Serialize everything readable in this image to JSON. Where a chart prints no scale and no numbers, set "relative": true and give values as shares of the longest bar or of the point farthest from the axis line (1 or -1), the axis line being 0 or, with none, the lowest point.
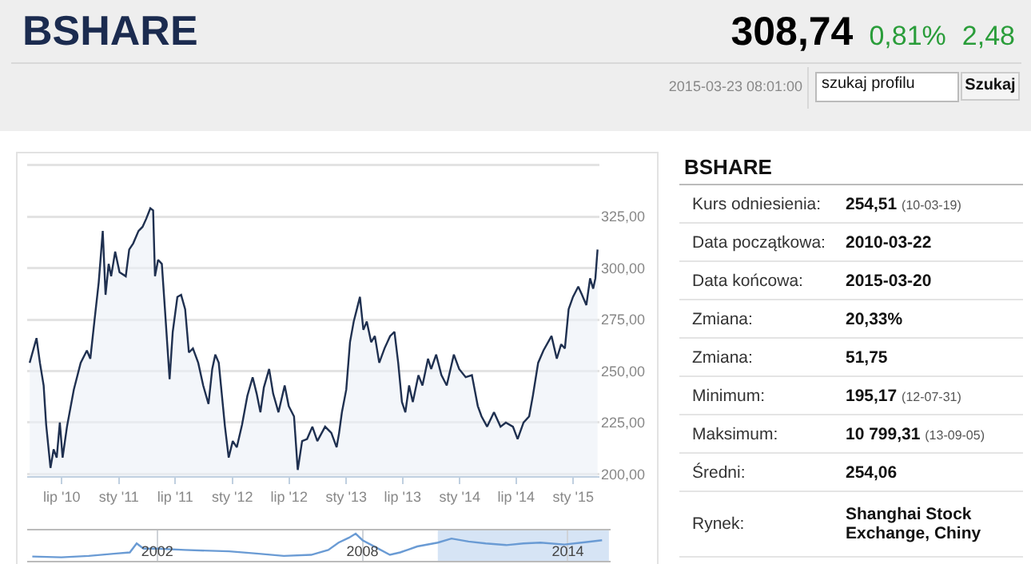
{
  "chart_data": [
    {
      "type": "other",
      "title": "BSHARE",
      "annotations": [
        "308,74",
        "0,81%",
        "2,48",
        "2015-03-23 08:01:00",
        "szukaj profilu",
        "Szukaj"
      ]
    },
    {
      "type": "area",
      "color": "#1f3050",
      "grid": "y",
      "marker": "none",
      "line_style": "solid",
      "x": [
        "2010-03-20",
        "2010-04-11",
        "2010-04-22",
        "2010-05-04",
        "2010-05-12",
        "2010-05-26",
        "2010-06-05",
        "2010-06-15",
        "2010-06-25",
        "2010-07-04",
        "2010-07-18",
        "2010-08-09",
        "2010-08-31",
        "2010-09-20",
        "2010-10-01",
        "2010-10-14",
        "2010-10-28",
        "2010-11-10",
        "2010-11-19",
        "2010-11-29",
        "2010-12-07",
        "2010-12-20",
        "2011-01-03",
        "2011-01-23",
        "2011-02-03",
        "2011-02-16",
        "2011-03-05",
        "2011-03-18",
        "2011-03-30",
        "2011-04-12",
        "2011-04-21",
        "2011-04-27",
        "2011-05-07",
        "2011-05-19",
        "2011-05-29",
        "2011-06-13",
        "2011-06-23",
        "2011-07-08",
        "2011-07-20",
        "2011-08-02",
        "2011-08-14",
        "2011-08-27",
        "2011-09-13",
        "2011-09-29",
        "2011-10-16",
        "2011-10-28",
        "2011-11-07",
        "2011-11-18",
        "2011-12-08",
        "2011-12-20",
        "2012-01-02",
        "2012-01-15",
        "2012-02-01",
        "2012-02-18",
        "2012-03-06",
        "2012-03-19",
        "2012-03-31",
        "2012-04-11",
        "2012-04-28",
        "2012-05-11",
        "2012-05-28",
        "2012-06-17",
        "2012-06-30",
        "2012-07-17",
        "2012-07-29",
        "2012-08-12",
        "2012-08-28",
        "2012-09-14",
        "2012-09-30",
        "2012-10-25",
        "2012-11-14",
        "2012-12-01",
        "2012-12-09",
        "2012-12-18",
        "2013-01-01",
        "2013-01-13",
        "2013-01-25",
        "2013-02-04",
        "2013-02-14",
        "2013-02-25",
        "2013-03-08",
        "2013-03-22",
        "2013-04-03",
        "2013-04-17",
        "2013-05-04",
        "2013-05-22",
        "2013-06-05",
        "2013-06-17",
        "2013-06-29",
        "2013-07-10",
        "2013-07-22",
        "2013-08-03",
        "2013-08-21",
        "2013-09-03",
        "2013-09-21",
        "2013-10-01",
        "2013-10-17",
        "2013-11-03",
        "2013-11-20",
        "2013-12-13",
        "2013-12-30",
        "2014-01-20",
        "2014-02-09",
        "2014-02-28",
        "2014-03-12",
        "2014-03-30",
        "2014-04-21",
        "2014-05-12",
        "2014-05-29",
        "2014-06-21",
        "2014-07-06",
        "2014-07-25",
        "2014-08-12",
        "2014-08-24",
        "2014-09-10",
        "2014-09-27",
        "2014-10-23",
        "2014-11-09",
        "2014-11-23",
        "2014-12-05",
        "2014-12-17",
        "2014-12-31",
        "2015-01-17",
        "2015-01-29",
        "2015-02-12",
        "2015-02-24",
        "2015-03-06",
        "2015-03-13",
        "2015-03-20"
      ],
      "values": [
        254,
        266,
        254,
        243,
        224,
        203,
        212,
        208,
        225,
        208,
        223,
        241,
        254,
        260,
        256,
        274,
        293,
        318,
        287,
        302,
        296,
        308,
        298,
        296,
        309,
        312,
        318,
        320,
        324,
        329,
        328,
        296,
        304,
        302,
        280,
        246,
        269,
        286,
        287,
        280,
        259,
        261,
        254,
        243,
        234,
        251,
        258,
        254,
        223,
        208,
        216,
        213,
        224,
        238,
        247,
        239,
        230,
        242,
        251,
        239,
        230,
        243,
        233,
        228,
        202,
        216,
        217,
        223,
        216,
        223,
        220,
        213,
        220,
        230,
        241,
        264,
        274,
        280,
        286,
        270,
        274,
        264,
        267,
        254,
        261,
        267,
        269,
        254,
        235,
        230,
        243,
        235,
        248,
        243,
        256,
        251,
        258,
        248,
        243,
        258,
        251,
        247,
        248,
        233,
        228,
        223,
        230,
        223,
        225,
        223,
        217,
        225,
        228,
        238,
        254,
        260,
        267,
        256,
        263,
        261,
        280,
        286,
        291,
        287,
        282,
        295,
        290,
        295,
        309
      ],
      "xlim": [
        "2010-03-12",
        "2015-03-26"
      ],
      "xticks": [
        {
          "value": "2010-07-01",
          "label": "lip '10"
        },
        {
          "value": "2011-01-01",
          "label": "sty '11"
        },
        {
          "value": "2011-07-01",
          "label": "lip '11"
        },
        {
          "value": "2012-01-01",
          "label": "sty '12"
        },
        {
          "value": "2012-07-01",
          "label": "lip '12"
        },
        {
          "value": "2013-01-01",
          "label": "sty '13"
        },
        {
          "value": "2013-07-01",
          "label": "lip '13"
        },
        {
          "value": "2014-01-01",
          "label": "sty '14"
        },
        {
          "value": "2014-07-01",
          "label": "lip '14"
        },
        {
          "value": "2015-01-01",
          "label": "sty '15"
        }
      ],
      "ylim": [
        199,
        351
      ],
      "yticks": [
        {
          "value": 200,
          "label": "200,00"
        },
        {
          "value": 225,
          "label": "225,00"
        },
        {
          "value": 250,
          "label": "250,00"
        },
        {
          "value": 275,
          "label": "275,00"
        },
        {
          "value": 300,
          "label": "300,00"
        },
        {
          "value": 325,
          "label": "325,00"
        },
        {
          "value": 350,
          "label": null
        }
      ]
    },
    {
      "type": "line",
      "relative": true,
      "color": "#6a9bd4",
      "marker": "none",
      "grid": "x",
      "tick_labels": "x",
      "x": [
        1998.35,
        1999.2,
        2000.0,
        2000.8,
        2001.2,
        2001.4,
        2001.6,
        2002.0,
        2002.8,
        2004.1,
        2004.9,
        2005.7,
        2006.5,
        2007.0,
        2007.3,
        2007.6,
        2007.8,
        2008.0,
        2008.4,
        2008.8,
        2009.1,
        2009.6,
        2010.2,
        2010.6,
        2011.1,
        2011.6,
        2012.2,
        2012.7,
        2013.2,
        2013.9,
        2014.4,
        2015.0
      ],
      "values": [
        0.16,
        0.13,
        0.18,
        0.27,
        0.31,
        0.64,
        0.45,
        0.45,
        0.4,
        0.35,
        0.27,
        0.18,
        0.22,
        0.4,
        0.67,
        0.85,
        1,
        0.76,
        0.49,
        0.22,
        0.31,
        0.53,
        0.67,
        0.82,
        0.71,
        0.64,
        0.58,
        0.64,
        0.67,
        0.6,
        0.67,
        0.76
      ],
      "xlim": [
        1998.2,
        2015.25
      ],
      "xticks": [
        2002,
        2008,
        2014
      ],
      "bands": [
        {
          "axis": "x",
          "from": 2010.2,
          "to": 2015.2,
          "color": "#d6e4f5"
        }
      ]
    },
    {
      "type": "other",
      "title": "BSHARE",
      "annotations": [
        "Kurs odniesienia:",
        "254,51",
        "(10-03-19)",
        "Data początkowa:",
        "2010-03-22",
        "Data końcowa:",
        "2015-03-20",
        "Zmiana:",
        "20,33%",
        "Zmiana:",
        "51,75",
        "Minimum:",
        "195,17",
        "(12-07-31)",
        "Maksimum:",
        "10 799,31",
        "(13-09-05)",
        "Średni:",
        "254,06",
        "Rynek:",
        "Shanghai Stock Exchange, Chiny"
      ]
    }
  ]
}
